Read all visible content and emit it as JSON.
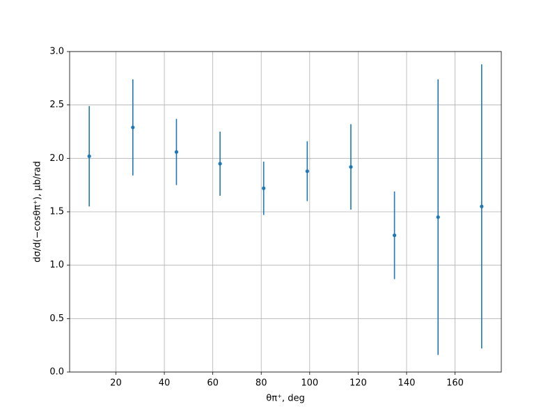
{
  "chart_data": {
    "type": "errorbar",
    "xlabel": "θπ⁺, deg",
    "ylabel": "dσ/d(−cosθπ⁺), μb/rad",
    "x": [
      9,
      27,
      45,
      63,
      81,
      99,
      117,
      135,
      153,
      171
    ],
    "series": [
      {
        "color": "#1f77b4",
        "values": [
          2.02,
          2.29,
          2.06,
          1.95,
          1.72,
          1.88,
          1.92,
          1.28,
          1.45,
          1.55
        ],
        "errors": [
          0.47,
          0.45,
          0.31,
          0.3,
          0.25,
          0.28,
          0.4,
          0.41,
          1.29,
          1.33
        ]
      }
    ],
    "xlim": [
      0.9,
      179.1
    ],
    "xticks": [
      20,
      40,
      60,
      80,
      100,
      120,
      140,
      160
    ],
    "ylim": [
      0,
      3
    ],
    "yticks": [
      {
        "value": 0,
        "label": "0.0"
      },
      0.5,
      {
        "value": 1,
        "label": "1.0"
      },
      1.5,
      {
        "value": 2,
        "label": "2.0"
      },
      2.5,
      {
        "value": 3,
        "label": "3.0"
      }
    ],
    "grid": true
  }
}
